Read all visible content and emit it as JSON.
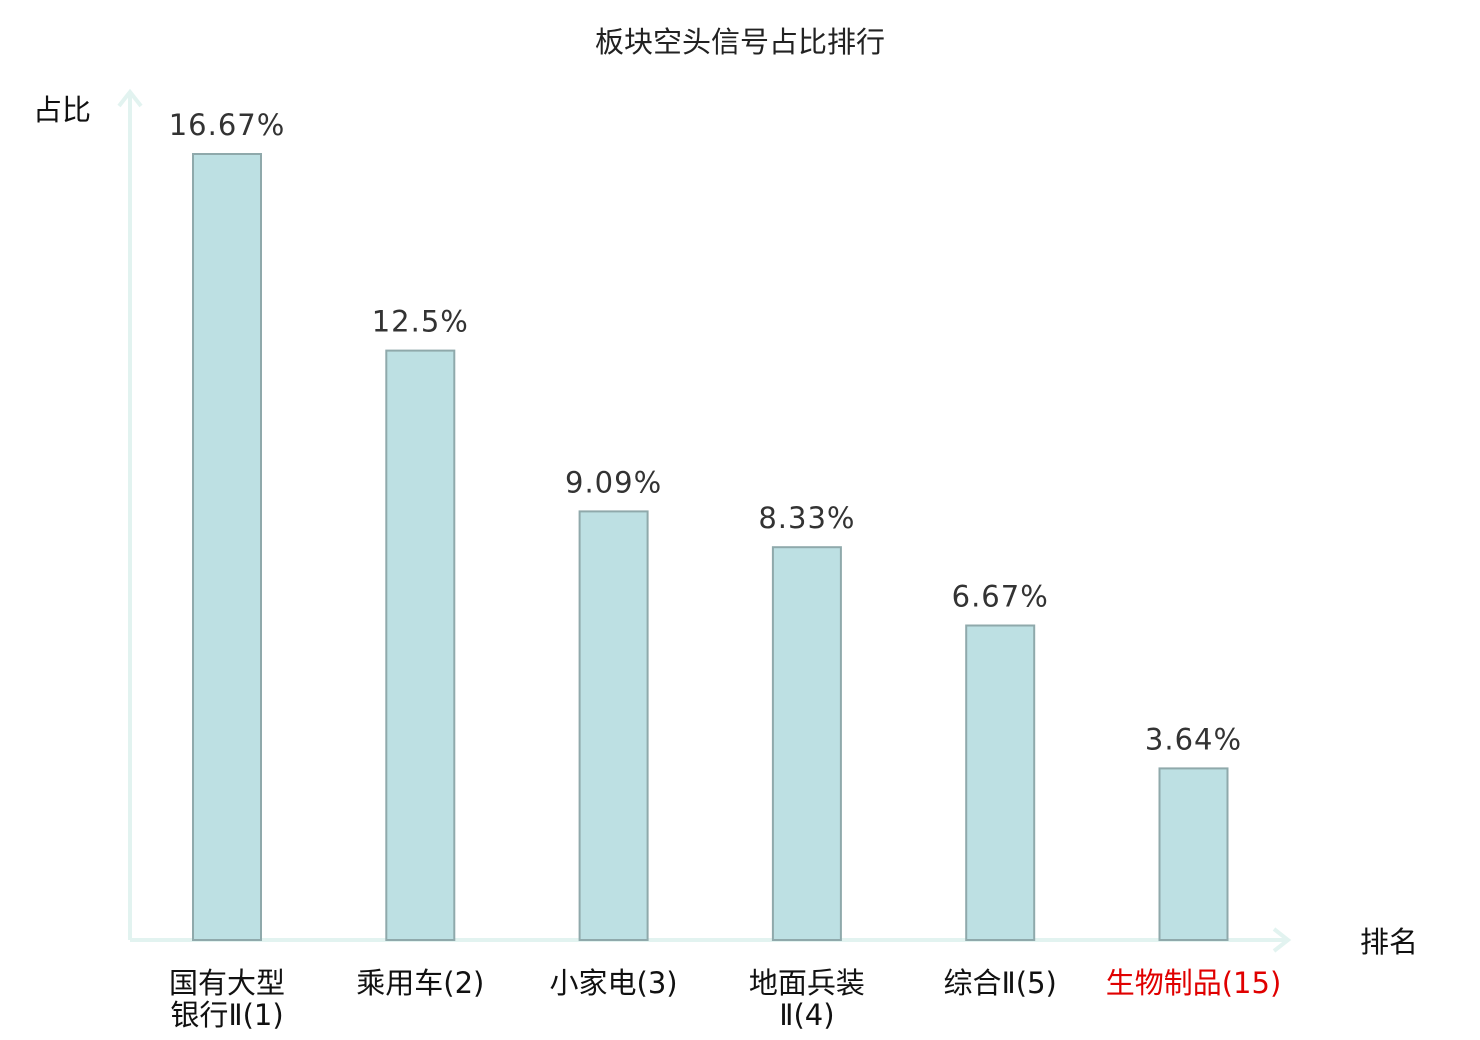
{
  "chart_data": {
    "type": "bar",
    "title": "板块空头信号占比排行",
    "ylabel": "占比",
    "xlabel": "排名",
    "unit": "%",
    "ylim": [
      0,
      16.67
    ],
    "grid": false,
    "highlight_color": "#e00000",
    "bar_color": "#bde0e3",
    "categories": [
      {
        "lines": [
          "国有大型",
          "银行Ⅱ(1)"
        ],
        "highlight": false
      },
      {
        "lines": [
          "乘用车(2)"
        ],
        "highlight": false
      },
      {
        "lines": [
          "小家电(3)"
        ],
        "highlight": false
      },
      {
        "lines": [
          "地面兵装",
          "Ⅱ(4)"
        ],
        "highlight": false
      },
      {
        "lines": [
          "综合Ⅱ(5)"
        ],
        "highlight": false
      },
      {
        "lines": [
          "生物制品(15)"
        ],
        "highlight": true
      }
    ],
    "values": [
      16.67,
      12.5,
      9.09,
      8.33,
      6.67,
      3.64
    ],
    "value_labels": [
      "16.67%",
      "12.5%",
      "9.09%",
      "8.33%",
      "6.67%",
      "3.64%"
    ]
  }
}
